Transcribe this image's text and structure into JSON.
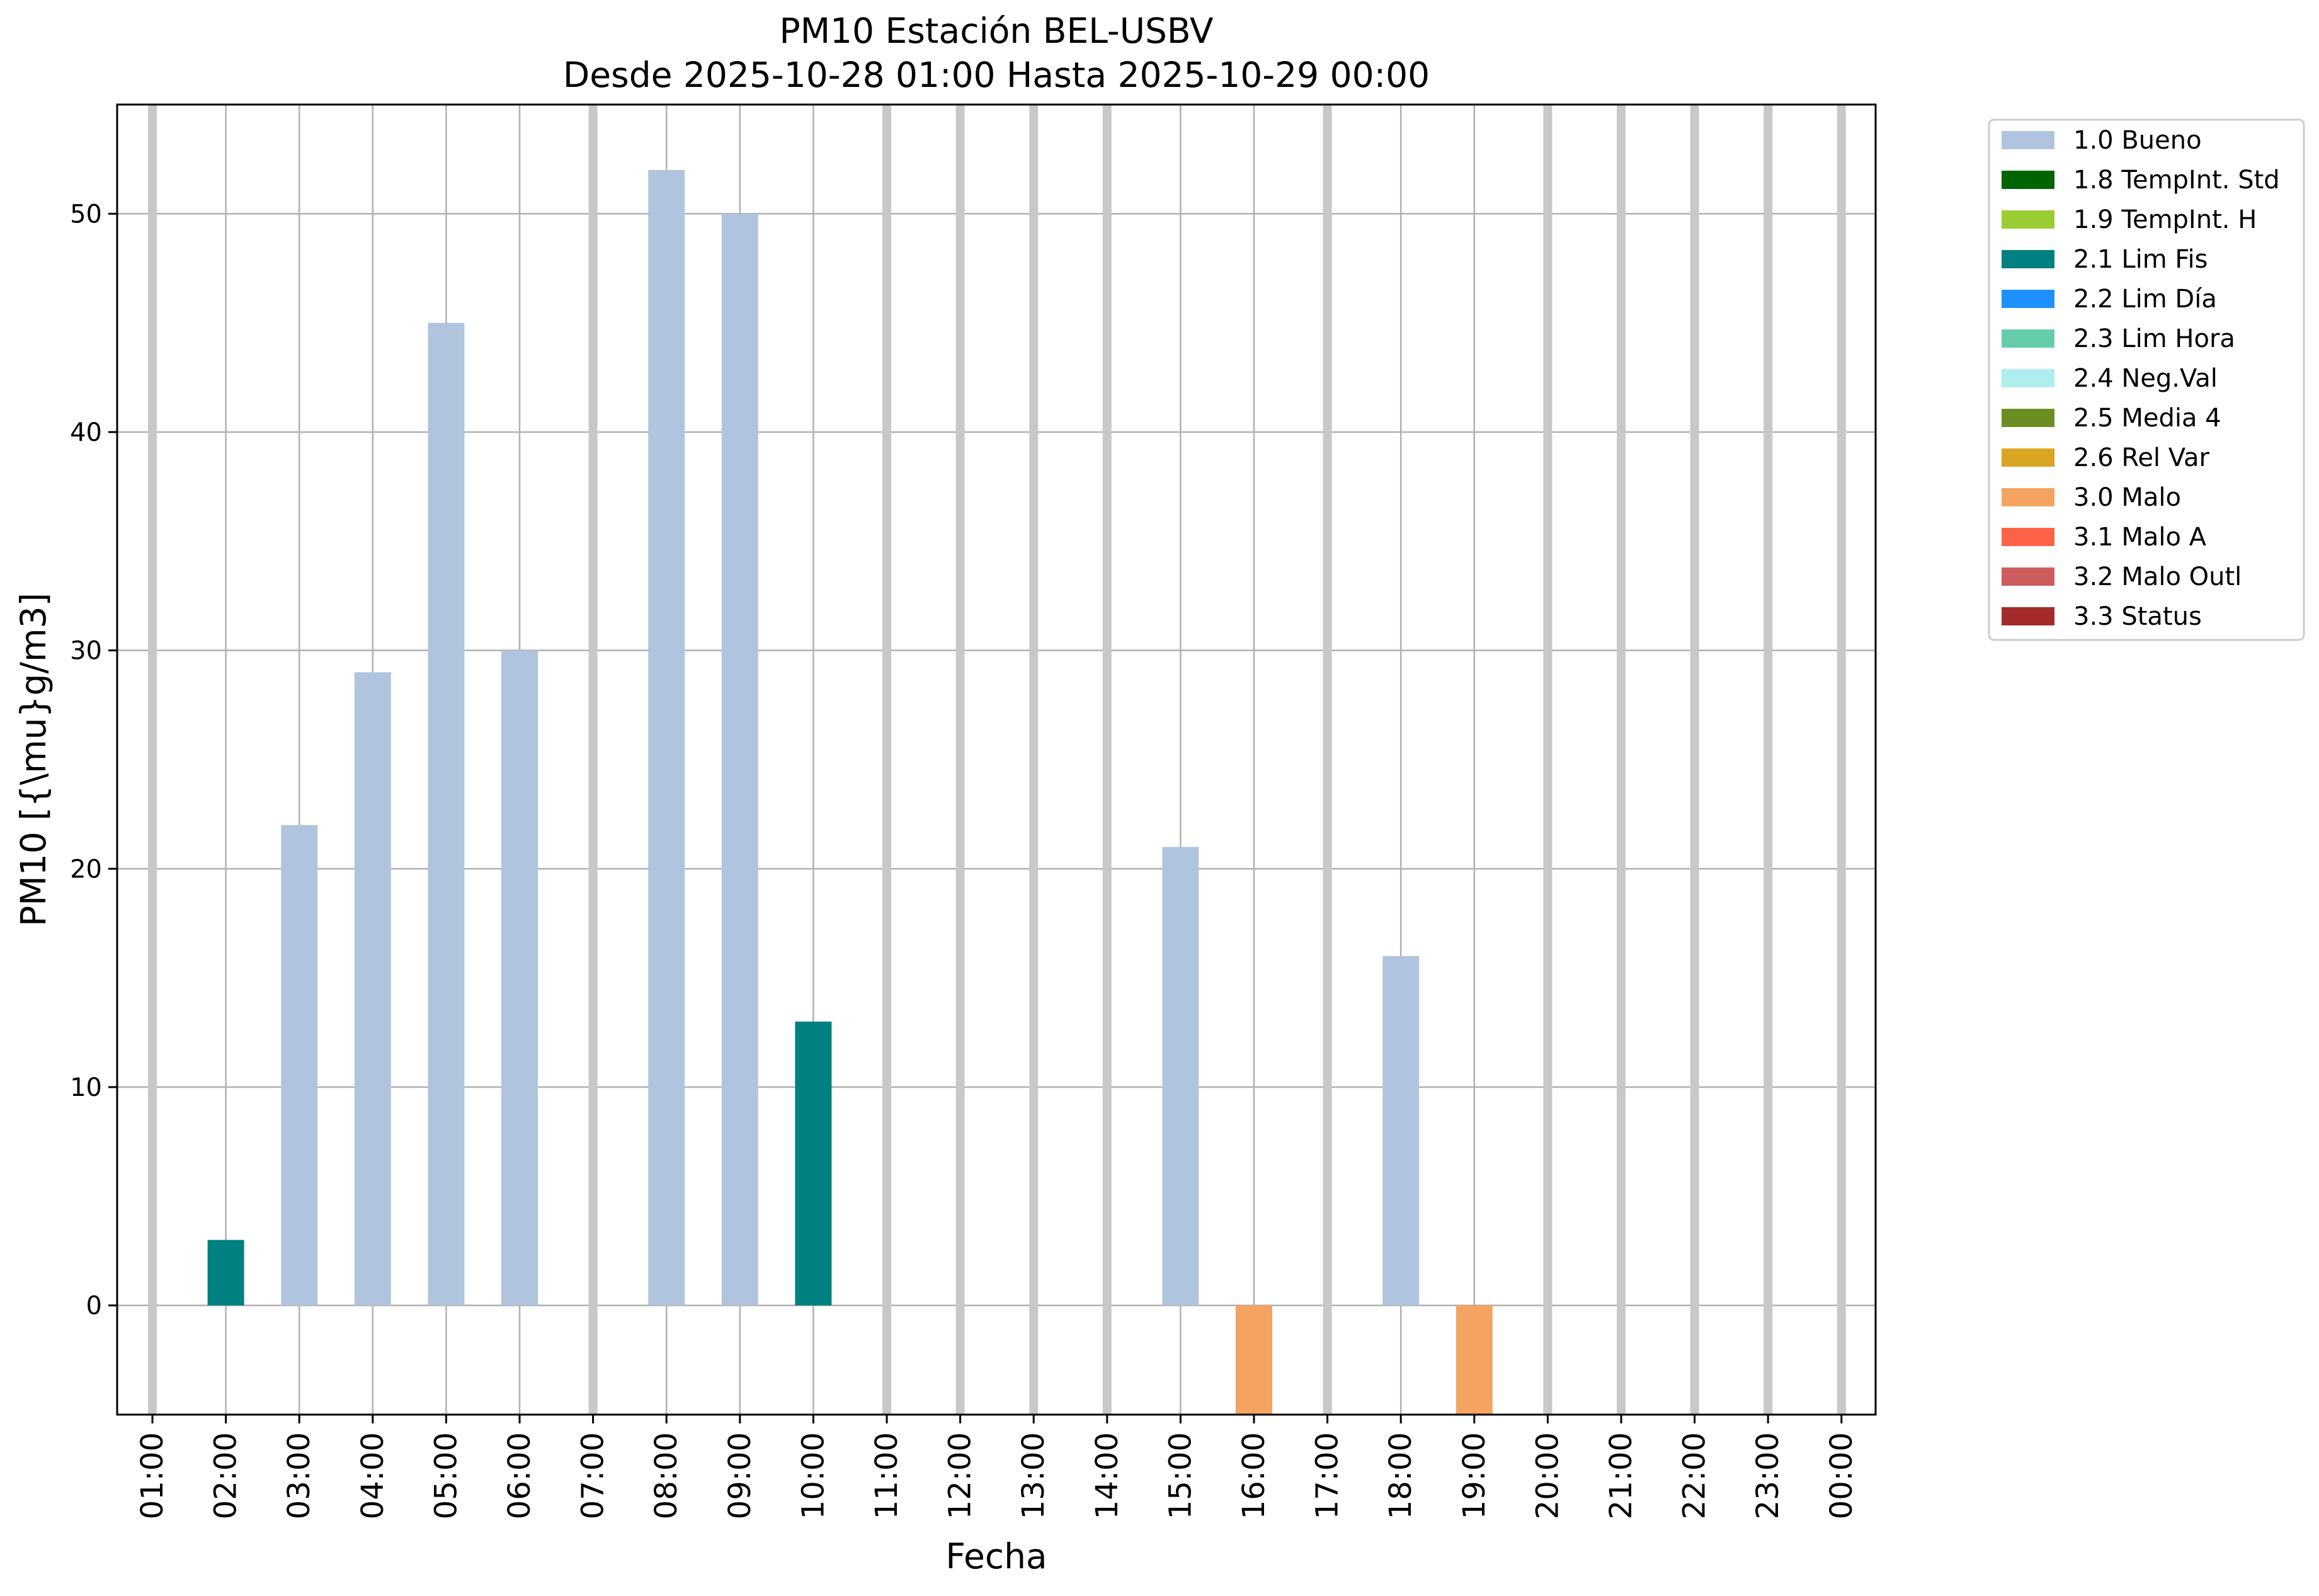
{
  "chart_data": {
    "type": "bar",
    "title": "PM10 Estación BEL-USBV",
    "subtitle": "Desde 2025-10-28 01:00 Hasta 2025-10-29 00:00",
    "xlabel": "Fecha",
    "ylabel": "PM10 [{\\mu}g/m3]",
    "ylim": [
      -5,
      55
    ],
    "yticks": [
      0,
      10,
      20,
      30,
      40,
      50
    ],
    "grid": true,
    "legend_position": "outside-top-right",
    "categories": [
      "01:00",
      "02:00",
      "03:00",
      "04:00",
      "05:00",
      "06:00",
      "07:00",
      "08:00",
      "09:00",
      "10:00",
      "11:00",
      "12:00",
      "13:00",
      "14:00",
      "15:00",
      "16:00",
      "17:00",
      "18:00",
      "19:00",
      "20:00",
      "21:00",
      "22:00",
      "23:00",
      "00:00"
    ],
    "bars": [
      {
        "x": "02:00",
        "value": 3,
        "flag": "2.1 Lim Fis"
      },
      {
        "x": "03:00",
        "value": 22,
        "flag": "1.0 Bueno"
      },
      {
        "x": "04:00",
        "value": 29,
        "flag": "1.0 Bueno"
      },
      {
        "x": "05:00",
        "value": 45,
        "flag": "1.0 Bueno"
      },
      {
        "x": "06:00",
        "value": 30,
        "flag": "1.0 Bueno"
      },
      {
        "x": "08:00",
        "value": 52,
        "flag": "1.0 Bueno"
      },
      {
        "x": "09:00",
        "value": 50,
        "flag": "1.0 Bueno"
      },
      {
        "x": "10:00",
        "value": 13,
        "flag": "2.1 Lim Fis"
      },
      {
        "x": "15:00",
        "value": 21,
        "flag": "1.0 Bueno"
      },
      {
        "x": "16:00",
        "value": -5,
        "flag": "3.0 Malo"
      },
      {
        "x": "18:00",
        "value": 16,
        "flag": "1.0 Bueno"
      },
      {
        "x": "19:00",
        "value": -5,
        "flag": "3.0 Malo"
      }
    ],
    "missing_hours": [
      "01:00",
      "07:00",
      "11:00",
      "12:00",
      "13:00",
      "14:00",
      "17:00",
      "20:00",
      "21:00",
      "22:00",
      "23:00",
      "00:00"
    ],
    "missing_color": "#c8c8c8",
    "legend": [
      {
        "label": "1.0 Bueno",
        "color": "#b0c4de"
      },
      {
        "label": "1.8 TempInt. Std",
        "color": "#006400"
      },
      {
        "label": "1.9 TempInt. H",
        "color": "#9acd32"
      },
      {
        "label": "2.1 Lim Fis",
        "color": "#008080"
      },
      {
        "label": "2.2 Lim Día",
        "color": "#1e90ff"
      },
      {
        "label": "2.3 Lim Hora",
        "color": "#66cdaa"
      },
      {
        "label": "2.4 Neg.Val",
        "color": "#afeeee"
      },
      {
        "label": "2.5 Media 4",
        "color": "#6b8e23"
      },
      {
        "label": "2.6 Rel Var",
        "color": "#daa520"
      },
      {
        "label": "3.0 Malo",
        "color": "#f4a460"
      },
      {
        "label": "3.1 Malo A",
        "color": "#ff6347"
      },
      {
        "label": "3.2 Malo Outl",
        "color": "#cd5c5c"
      },
      {
        "label": "3.3 Status",
        "color": "#a52a2a"
      }
    ]
  }
}
